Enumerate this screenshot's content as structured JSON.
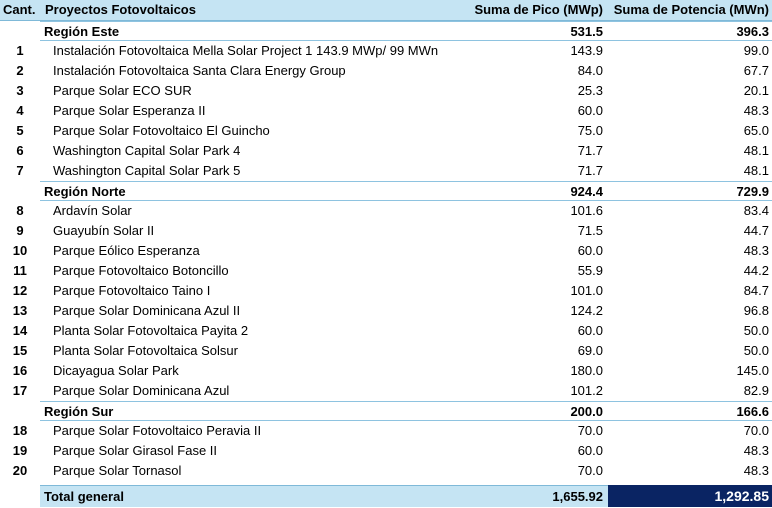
{
  "header": {
    "cant": "Cant.",
    "proyectos": "Proyectos Fotovoltaicos",
    "pico": "Suma de Pico (MWp)",
    "potencia": "Suma de Potencia (MWn)"
  },
  "rows": [
    {
      "type": "region",
      "cant": "",
      "name": "Región Este",
      "pico": "531.5",
      "potencia": "396.3"
    },
    {
      "type": "item",
      "cant": "1",
      "name": "Instalación Fotovoltaica Mella Solar Project 1 143.9 MWp/ 99 MWn",
      "pico": "143.9",
      "potencia": "99.0"
    },
    {
      "type": "item",
      "cant": "2",
      "name": "Instalación Fotovoltaica Santa Clara Energy Group",
      "pico": "84.0",
      "potencia": "67.7"
    },
    {
      "type": "item",
      "cant": "3",
      "name": "Parque Solar ECO SUR",
      "pico": "25.3",
      "potencia": "20.1"
    },
    {
      "type": "item",
      "cant": "4",
      "name": "Parque Solar Esperanza II",
      "pico": "60.0",
      "potencia": "48.3"
    },
    {
      "type": "item",
      "cant": "5",
      "name": "Parque Solar Fotovoltaico El Guincho",
      "pico": "75.0",
      "potencia": "65.0"
    },
    {
      "type": "item",
      "cant": "6",
      "name": "Washington Capital Solar Park 4",
      "pico": "71.7",
      "potencia": "48.1"
    },
    {
      "type": "item",
      "cant": "7",
      "name": "Washington Capital Solar Park 5",
      "pico": "71.7",
      "potencia": "48.1"
    },
    {
      "type": "region",
      "cant": "",
      "name": "Región Norte",
      "pico": "924.4",
      "potencia": "729.9"
    },
    {
      "type": "item",
      "cant": "8",
      "name": "Ardavín Solar",
      "pico": "101.6",
      "potencia": "83.4"
    },
    {
      "type": "item",
      "cant": "9",
      "name": "Guayubín Solar II",
      "pico": "71.5",
      "potencia": "44.7"
    },
    {
      "type": "item",
      "cant": "10",
      "name": "Parque Eólico Esperanza",
      "pico": "60.0",
      "potencia": "48.3"
    },
    {
      "type": "item",
      "cant": "11",
      "name": "Parque Fotovoltaico Botoncillo",
      "pico": "55.9",
      "potencia": "44.2"
    },
    {
      "type": "item",
      "cant": "12",
      "name": "Parque Fotovoltaico Taino I",
      "pico": "101.0",
      "potencia": "84.7"
    },
    {
      "type": "item",
      "cant": "13",
      "name": "Parque Solar Dominicana Azul II",
      "pico": "124.2",
      "potencia": "96.8"
    },
    {
      "type": "item",
      "cant": "14",
      "name": "Planta Solar Fotovoltaica Payita 2",
      "pico": "60.0",
      "potencia": "50.0"
    },
    {
      "type": "item",
      "cant": "15",
      "name": "Planta Solar Fotovoltaica Solsur",
      "pico": "69.0",
      "potencia": "50.0"
    },
    {
      "type": "item",
      "cant": "16",
      "name": "Dicayagua Solar Park",
      "pico": "180.0",
      "potencia": "145.0"
    },
    {
      "type": "item",
      "cant": "17",
      "name": "Parque Solar Dominicana Azul",
      "pico": "101.2",
      "potencia": "82.9"
    },
    {
      "type": "region",
      "cant": "",
      "name": "Región Sur",
      "pico": "200.0",
      "potencia": "166.6"
    },
    {
      "type": "item",
      "cant": "18",
      "name": "Parque Solar Fotovoltaico Peravia II",
      "pico": "70.0",
      "potencia": "70.0"
    },
    {
      "type": "item",
      "cant": "19",
      "name": "Parque Solar Girasol Fase II",
      "pico": "60.0",
      "potencia": "48.3"
    },
    {
      "type": "item",
      "cant": "20",
      "name": "Parque Solar Tornasol",
      "pico": "70.0",
      "potencia": "48.3"
    }
  ],
  "total": {
    "label": "Total general",
    "pico": "1,655.92",
    "potencia": "1,292.85"
  },
  "colors": {
    "header_bg": "#c5e4f3",
    "total_dark_bg": "#0a2463",
    "border": "#8ec3e0"
  }
}
